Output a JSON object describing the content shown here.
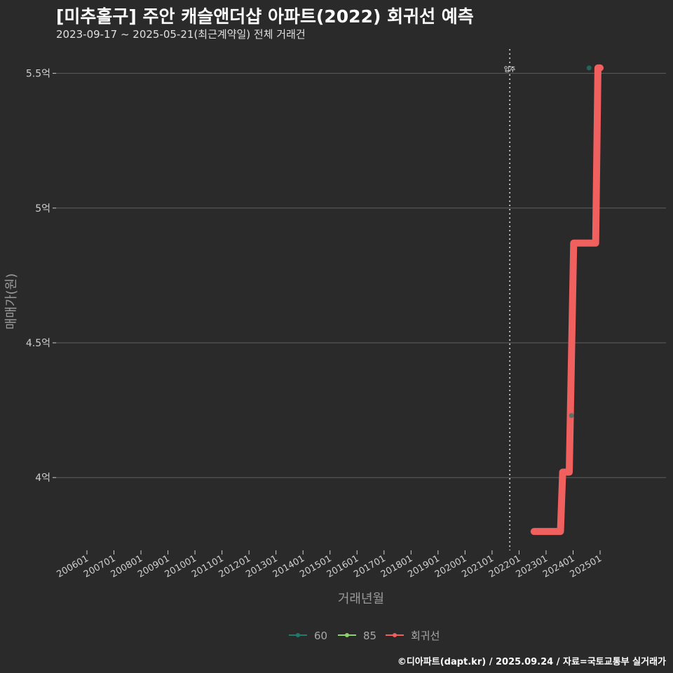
{
  "title": "[미추홀구] 주안 캐슬앤더샵 아파트(2022) 회귀선 예측",
  "subtitle": "2023-09-17 ~ 2025-05-21(최근계약일) 전체 거래건",
  "caption": "©디아파트(dapt.kr) / 2025.09.24 / 자료=국토교통부 실거래가",
  "colors": {
    "background": "#2b2a2b",
    "grid": "#5e5e5e",
    "s60": "#1f7a6e",
    "s85": "#8fd16a",
    "regression": "#f0605f"
  },
  "chart_data": {
    "type": "line",
    "xlabel": "거래년월",
    "ylabel": "매매가(원)",
    "ylim": [
      3.73,
      5.59
    ],
    "yticks": [
      4.0,
      4.5,
      5.0,
      5.5
    ],
    "ytick_labels": [
      "4억",
      "4.5억",
      "5억",
      "5.5억"
    ],
    "xtick_labels": [
      "200601",
      "200701",
      "200801",
      "200901",
      "201001",
      "201101",
      "201201",
      "201301",
      "201401",
      "201501",
      "201601",
      "201701",
      "201801",
      "201901",
      "202001",
      "202101",
      "202201",
      "202301",
      "202401",
      "202501"
    ],
    "grid": true,
    "legend_position": "bottom",
    "legend": [
      "60",
      "85",
      "회귀선"
    ],
    "annotations": [
      {
        "x": "2022-01",
        "label": "입주",
        "style": "dotted-vline"
      }
    ],
    "series": [
      {
        "name": "60",
        "kind": "scatter",
        "points": [
          {
            "x": "2024-05",
            "y": 4.23
          },
          {
            "x": "2025-01",
            "y": 5.52
          }
        ]
      },
      {
        "name": "85",
        "kind": "scatter",
        "points": []
      },
      {
        "name": "회귀선",
        "kind": "step",
        "points": [
          {
            "x": "2022-12",
            "y": 3.8
          },
          {
            "x": "2023-12",
            "y": 3.8
          },
          {
            "x": "2024-01",
            "y": 4.02
          },
          {
            "x": "2024-04",
            "y": 4.02
          },
          {
            "x": "2024-06",
            "y": 4.87
          },
          {
            "x": "2025-04",
            "y": 4.87
          },
          {
            "x": "2025-05",
            "y": 5.52
          },
          {
            "x": "2025-06",
            "y": 5.52
          }
        ]
      }
    ]
  }
}
